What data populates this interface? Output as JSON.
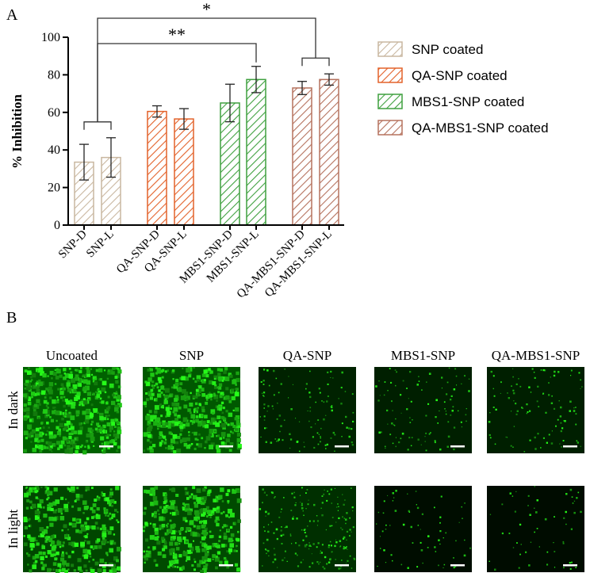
{
  "panel_labels": {
    "a": "A",
    "b": "B"
  },
  "chart_data": {
    "type": "bar",
    "ylabel": "% Inhibition",
    "xlabel": "",
    "ylim": [
      0,
      100
    ],
    "yticks": [
      0,
      20,
      40,
      60,
      80,
      100
    ],
    "grid": false,
    "legend_position": "right",
    "categories": [
      "SNP-D",
      "SNP-L",
      "QA-SNP-D",
      "QA-SNP-L",
      "MBS1-SNP-D",
      "MBS1-SNP-L",
      "QA-MBS1-SNP-D",
      "QA-MBS1-SNP-L"
    ],
    "values": [
      33.5,
      36,
      60.5,
      56.5,
      65,
      77.5,
      73,
      77.5
    ],
    "errors": [
      9.5,
      10.5,
      3,
      5.5,
      10,
      7,
      3.5,
      3
    ],
    "groups": [
      {
        "name": "SNP coated",
        "indices": [
          0,
          1
        ],
        "color": "#c9b7a0"
      },
      {
        "name": "QA-SNP coated",
        "indices": [
          2,
          3
        ],
        "color": "#e3622a"
      },
      {
        "name": "MBS1-SNP coated",
        "indices": [
          4,
          5
        ],
        "color": "#3fa03f"
      },
      {
        "name": "QA-MBS1-SNP coated",
        "indices": [
          6,
          7
        ],
        "color": "#b5725e"
      }
    ],
    "significance": [
      {
        "label": "**",
        "from_group": 0,
        "to_index": 5
      },
      {
        "label": "*",
        "from_group": 0,
        "to_group": 3
      }
    ]
  },
  "micrographs": {
    "columns": [
      "Uncoated",
      "SNP",
      "QA-SNP",
      "MBS1-SNP",
      "QA-MBS1-SNP"
    ],
    "rows": [
      "In dark",
      "In light"
    ],
    "green_level": [
      [
        0.85,
        0.75,
        0.15,
        0.12,
        0.12
      ],
      [
        0.55,
        0.6,
        0.3,
        0.05,
        0.03
      ]
    ]
  }
}
